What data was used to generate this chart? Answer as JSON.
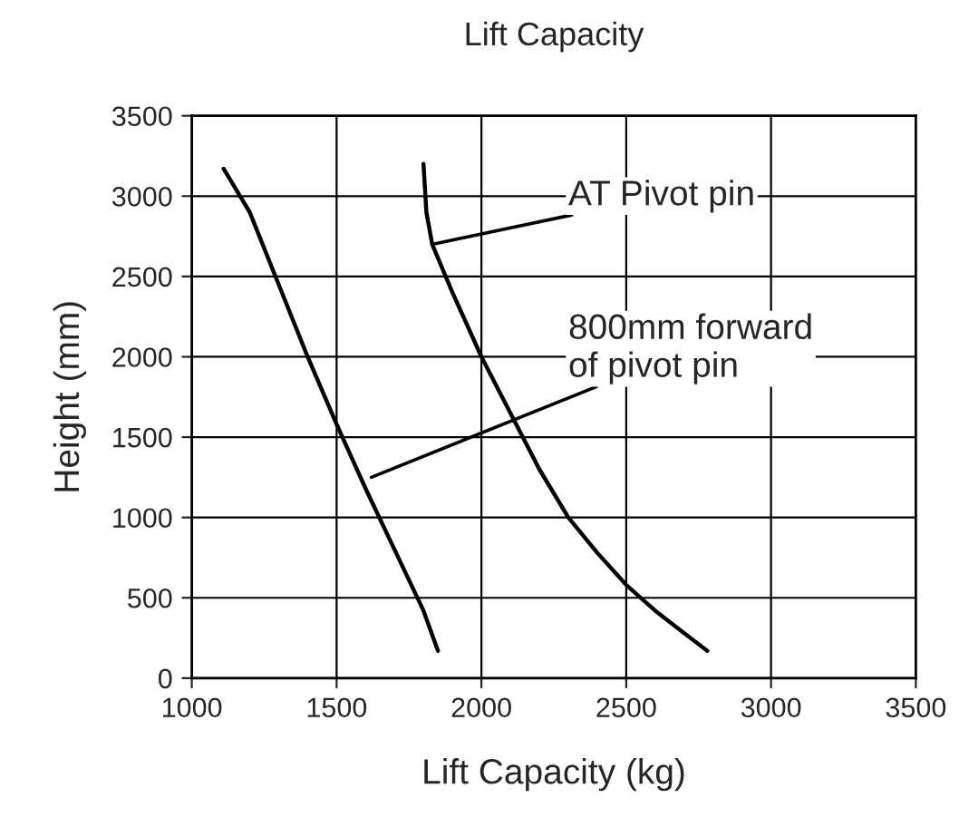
{
  "chart_data": {
    "type": "line",
    "title": "Lift Capacity",
    "xlabel": "Lift Capacity (kg)",
    "ylabel": "Height (mm)",
    "xlim": [
      1000,
      3500
    ],
    "xticks": [
      1000,
      1500,
      2000,
      2500,
      3000,
      3500
    ],
    "ylim": [
      0,
      3500
    ],
    "yticks": [
      0,
      500,
      1000,
      1500,
      2000,
      2500,
      3000,
      3500
    ],
    "grid": true,
    "series": [
      {
        "color": "#000000",
        "x": [
          1110,
          1200,
          1300,
          1400,
          1500,
          1600,
          1700,
          1800,
          1850
        ],
        "values": [
          3170,
          2900,
          2450,
          2000,
          1580,
          1180,
          800,
          420,
          170
        ]
      },
      {
        "color": "#000000",
        "x": [
          1800,
          1810,
          1830,
          1900,
          2000,
          2100,
          2200,
          2300,
          2400,
          2500,
          2600,
          2700,
          2780
        ],
        "values": [
          3200,
          2900,
          2700,
          2400,
          2000,
          1650,
          1300,
          1000,
          780,
          580,
          420,
          280,
          170
        ]
      }
    ],
    "annotations": [
      {
        "text": "AT Pivot pin",
        "x": 1830,
        "y": 2700
      },
      {
        "text": "800mm forward\nof pivot pin",
        "x": 1620,
        "y": 1250
      }
    ]
  }
}
